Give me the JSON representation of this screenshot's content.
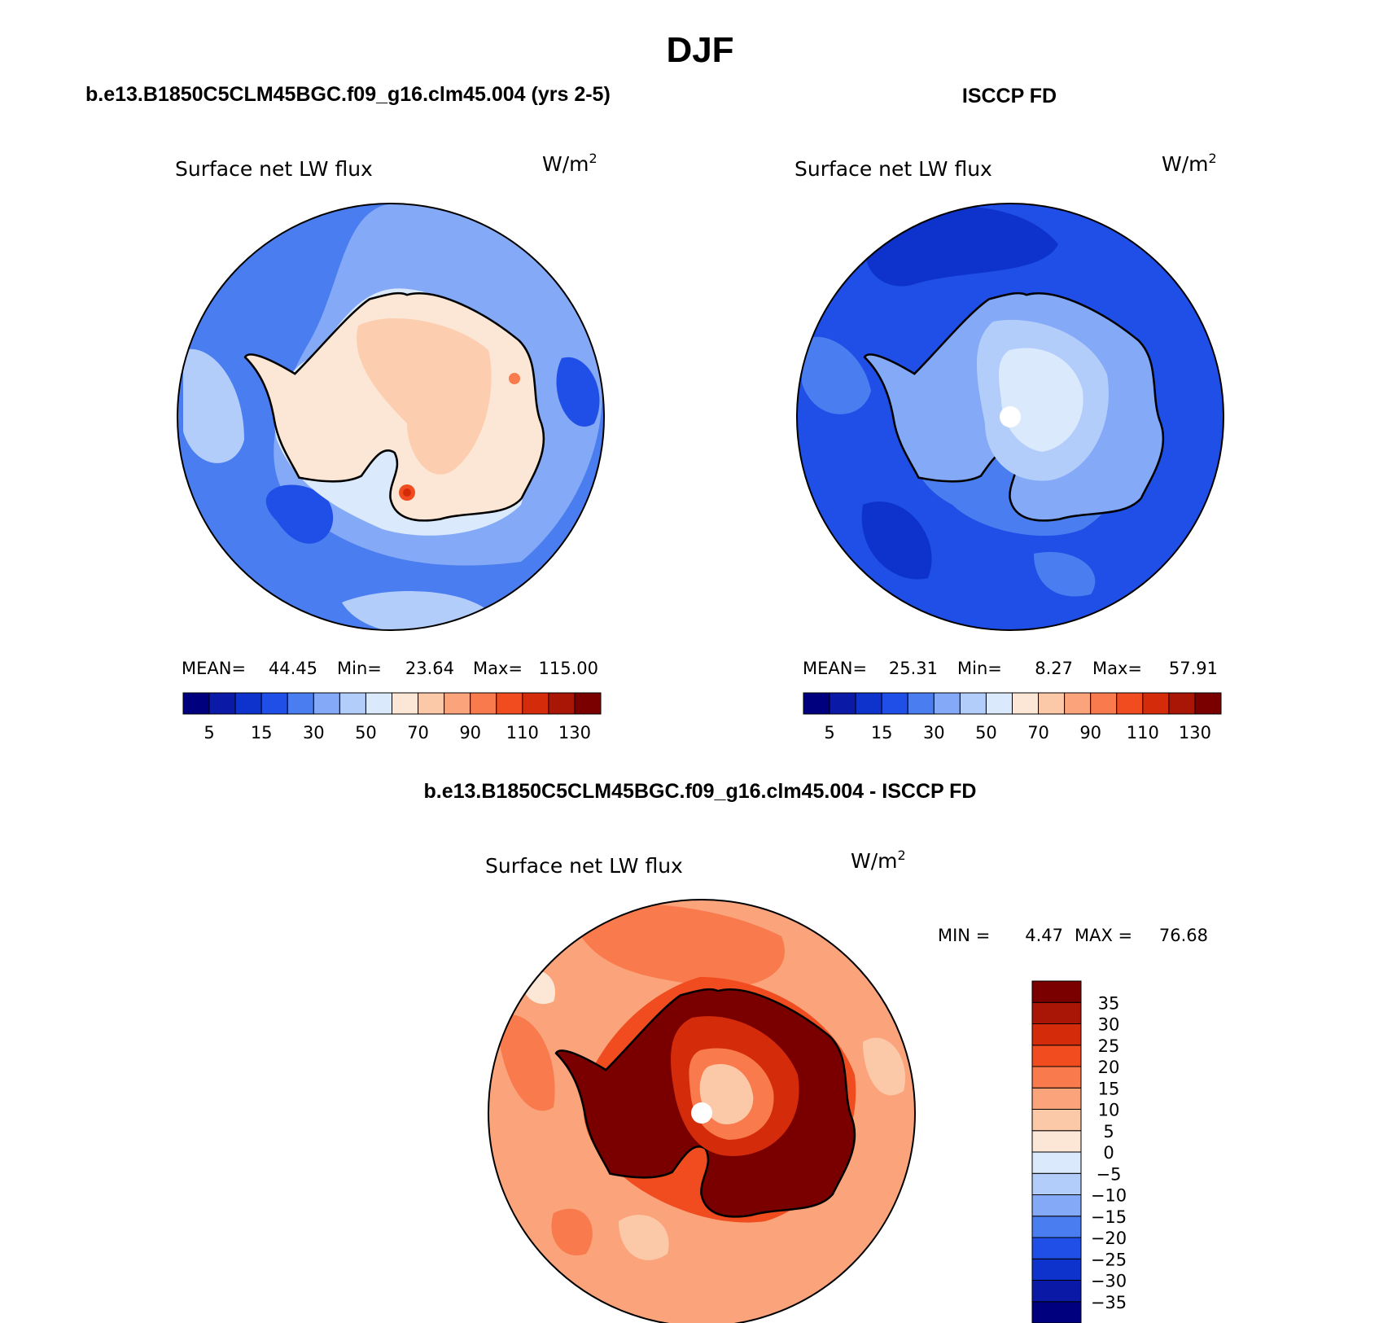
{
  "title": "DJF",
  "palette": {
    "blue": [
      "#00007f",
      "#0a1aa6",
      "#0d33cc",
      "#1f4fe6",
      "#4a7ef0",
      "#84a9f7",
      "#b3cdfb",
      "#dbe9fd"
    ],
    "orange": [
      "#fce6d6",
      "#fcc9a8",
      "#fba47c",
      "#f87a4d",
      "#f04c1f",
      "#d42c0a",
      "#aa1605",
      "#7a0000"
    ]
  },
  "chart_data": [
    {
      "type": "heatmap",
      "projection": "south-polar-stereographic",
      "case_title": "b.e13.B1850C5CLM45BGC.f09_g16.clm45.004 (yrs 2-5)",
      "variable": "Surface net LW flux",
      "units": "W/m",
      "units_sup": "2",
      "stats": {
        "mean_label": "MEAN=",
        "mean": "44.45",
        "min_label": "Min=",
        "min": "23.64",
        "max_label": "Max=",
        "max": "115.00"
      },
      "levels": [
        5,
        10,
        15,
        20,
        30,
        40,
        50,
        60,
        70,
        80,
        90,
        100,
        110,
        120,
        130
      ],
      "colorbar_labels": [
        "5",
        "15",
        "30",
        "50",
        "70",
        "90",
        "110",
        "130"
      ],
      "field": {
        "ocean_low": 30,
        "ocean_mid": 40,
        "ocean_high": 50,
        "coast": 60,
        "interior": 70,
        "ridge": 80,
        "hotspot": 115
      }
    },
    {
      "type": "heatmap",
      "projection": "south-polar-stereographic",
      "case_title": "ISCCP FD",
      "variable": "Surface net LW flux",
      "units": "W/m",
      "units_sup": "2",
      "stats": {
        "mean_label": "MEAN=",
        "mean": "25.31",
        "min_label": "Min=",
        "min": "8.27",
        "max_label": "Max=",
        "max": "57.91"
      },
      "levels": [
        5,
        10,
        15,
        20,
        30,
        40,
        50,
        60,
        70,
        80,
        90,
        100,
        110,
        120,
        130
      ],
      "colorbar_labels": [
        "5",
        "15",
        "30",
        "50",
        "70",
        "90",
        "110",
        "130"
      ],
      "field": {
        "ocean_low": 15,
        "ocean_mid": 20,
        "ocean_high": 30,
        "coast": 40,
        "interior": 50,
        "ridge": 55
      }
    },
    {
      "type": "heatmap",
      "projection": "south-polar-stereographic",
      "case_title": "b.e13.B1850C5CLM45BGC.f09_g16.clm45.004 - ISCCP FD",
      "variable": "Surface net LW flux",
      "units": "W/m",
      "units_sup": "2",
      "stats": {
        "min_label": "MIN =",
        "min": "4.47",
        "max_label": "MAX =",
        "max": "76.68"
      },
      "levels": [
        -35,
        -30,
        -25,
        -20,
        -15,
        -10,
        -5,
        0,
        5,
        10,
        15,
        20,
        25,
        30,
        35
      ],
      "colorbar_labels": [
        "35",
        "30",
        "25",
        "20",
        "15",
        "10",
        "5",
        "0",
        "−5",
        "−10",
        "−15",
        "−20",
        "−25",
        "−30",
        "−35"
      ],
      "field": {
        "ocean_low": 10,
        "ocean_mid": 15,
        "ocean_high": 20,
        "coast": 30,
        "interior": 25,
        "ridge": 12
      }
    }
  ]
}
